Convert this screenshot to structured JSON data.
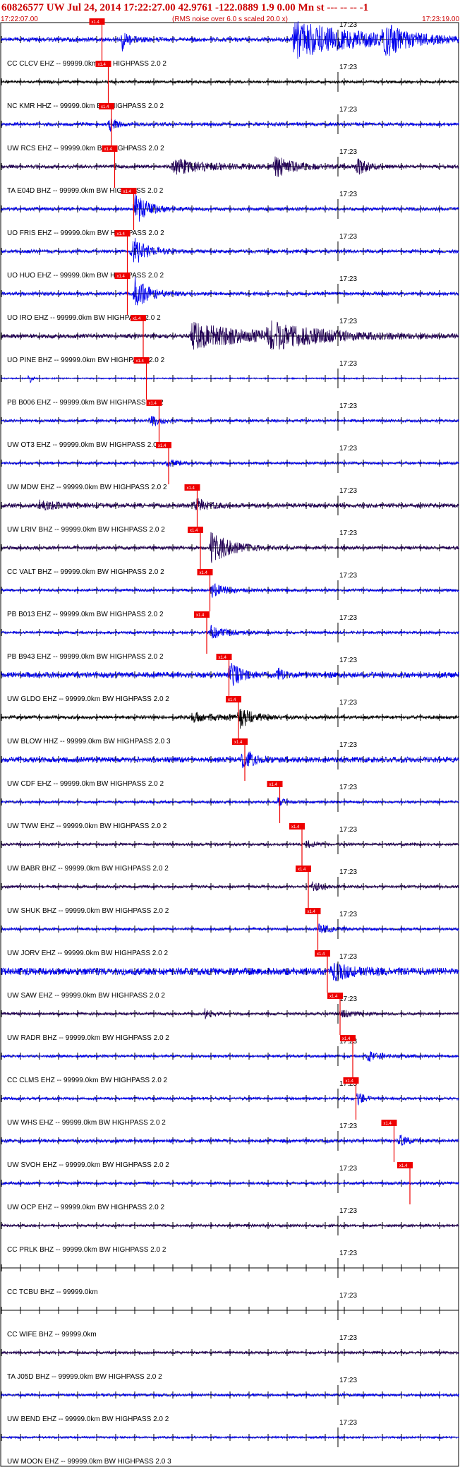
{
  "header": {
    "title": "60826577 UW Jul 24, 2014 17:22:27.00   42.9761 -122.0889  1.9 0.00 Mn st --- -- --  -1",
    "subtitle": "(RMS noise over 6.0 s scaled 20.0 x)",
    "start_time": "17:22:07.00",
    "end_time": "17:23:19.00"
  },
  "colors": {
    "blue": "#0000ee",
    "purple": "#220055",
    "black": "#000000",
    "pick": "#ee0000"
  },
  "chart_data": {
    "type": "line",
    "title": "60826577 UW Jul 24, 2014 17:22:27.00   42.9761 -122.0889  1.9 0.00 Mn st --- -- --  -1",
    "xlabel": "",
    "ylabel": "",
    "x_start": "17:22:07.00",
    "x_end": "17:23:19.00",
    "xlim_seconds": [
      0,
      72
    ],
    "minute_label": "17:23",
    "minute_label_seconds": 53,
    "pick_label": "x1.4",
    "grid": false,
    "series": [
      {
        "name": "CC CLCV EHZ -- 99999.0km BW  HIGHPASS  2.0  2",
        "color": "blue",
        "amp": 3,
        "pick_s": 14.5,
        "bursts": [
          {
            "s": 19,
            "w": 1.2,
            "a": 14
          },
          {
            "s": 46,
            "w": 10,
            "a": 26
          },
          {
            "s": 60,
            "w": 3,
            "a": 22
          }
        ]
      },
      {
        "name": "NC KMR HHZ -- 99999.0km BW  HIGHPASS  2.0  2",
        "color": "black",
        "amp": 2,
        "pick_s": 15.5,
        "bursts": []
      },
      {
        "name": "UW RCS EHZ -- 99999.0km BW  HIGHPASS  2.0  2",
        "color": "blue",
        "amp": 2.5,
        "pick_s": 16,
        "bursts": [
          {
            "s": 17,
            "w": 1,
            "a": 9
          }
        ]
      },
      {
        "name": "TA E04D BHZ -- 99999.0km BW  HIGHPASS  2.0  2",
        "color": "purple",
        "amp": 2.5,
        "pick_s": 16.5,
        "bursts": [
          {
            "s": 27,
            "w": 6,
            "a": 10
          },
          {
            "s": 43,
            "w": 3,
            "a": 14
          },
          {
            "s": 56,
            "w": 1.5,
            "a": 13
          }
        ]
      },
      {
        "name": "UO FRIS EHZ -- 99999.0km BW  HIGHPASS  2.0  2",
        "color": "blue",
        "amp": 2.5,
        "pick_s": 19.5,
        "bursts": [
          {
            "s": 21,
            "w": 2,
            "a": 22
          }
        ]
      },
      {
        "name": "UO HUO EHZ -- 99999.0km BW  HIGHPASS  2.0  2",
        "color": "blue",
        "amp": 2.5,
        "pick_s": 18.5,
        "bursts": [
          {
            "s": 20.5,
            "w": 2.2,
            "a": 22
          }
        ]
      },
      {
        "name": "UO IRO EHZ -- 99999.0km BW  HIGHPASS  2.0  2",
        "color": "blue",
        "amp": 2.5,
        "pick_s": 18.5,
        "bursts": [
          {
            "s": 21,
            "w": 2.2,
            "a": 22
          }
        ]
      },
      {
        "name": "UO PINE BHZ -- 99999.0km BW  HIGHPASS  2.0  2",
        "color": "purple",
        "amp": 3,
        "pick_s": 21,
        "bursts": [
          {
            "s": 30,
            "w": 9,
            "a": 18
          },
          {
            "s": 42,
            "w": 8,
            "a": 16
          }
        ]
      },
      {
        "name": "PB B006 EHZ -- 99999.0km BW  HIGHPASS  2.0  2",
        "color": "blue",
        "amp": 1,
        "pick_s": 21.5,
        "bursts": [
          {
            "s": 4.5,
            "w": 0.3,
            "a": 10
          }
        ]
      },
      {
        "name": "UW OT3 EHZ -- 99999.0km BW  HIGHPASS  2.0  2",
        "color": "blue",
        "amp": 2,
        "pick_s": 23.5,
        "bursts": [
          {
            "s": 23.5,
            "w": 1.5,
            "a": 8
          }
        ]
      },
      {
        "name": "UW MDW EHZ -- 99999.0km BW  HIGHPASS  2.0  2",
        "color": "blue",
        "amp": 2,
        "pick_s": 25,
        "bursts": [
          {
            "s": 26,
            "w": 1.5,
            "a": 6
          }
        ]
      },
      {
        "name": "UW LRIV BHZ -- 99999.0km BW  HIGHPASS  2.0  2",
        "color": "purple",
        "amp": 3,
        "pick_s": 29.5,
        "bursts": [
          {
            "s": 6,
            "w": 3,
            "a": 6
          },
          {
            "s": 30.5,
            "w": 2,
            "a": 10
          }
        ]
      },
      {
        "name": "CC VALT BHZ -- 99999.0km BW  HIGHPASS  2.0  2",
        "color": "purple",
        "amp": 2.5,
        "pick_s": 30,
        "bursts": [
          {
            "s": 33,
            "w": 3,
            "a": 22
          }
        ]
      },
      {
        "name": "PB B013 EHZ -- 99999.0km BW  HIGHPASS  2.0  2",
        "color": "blue",
        "amp": 2,
        "pick_s": 31.5,
        "bursts": [
          {
            "s": 33,
            "w": 2.5,
            "a": 10
          }
        ]
      },
      {
        "name": "PB B943 EHZ -- 99999.0km BW  HIGHPASS  2.0  2",
        "color": "blue",
        "amp": 2,
        "pick_s": 31,
        "bursts": [
          {
            "s": 33,
            "w": 2.5,
            "a": 9
          }
        ]
      },
      {
        "name": "UW GLDO EHZ -- 99999.0km BW  HIGHPASS  2.0  2",
        "color": "blue",
        "amp": 4,
        "pick_s": 34.5,
        "bursts": [
          {
            "s": 36,
            "w": 1.5,
            "a": 20
          },
          {
            "s": 43.5,
            "w": 0.5,
            "a": 14
          }
        ]
      },
      {
        "name": "UW BLOW HHZ -- 99999.0km BW  HIGHPASS  2.0  3",
        "color": "black",
        "amp": 2.5,
        "pick_s": 36,
        "bursts": [
          {
            "s": 37.5,
            "w": 2,
            "a": 14
          },
          {
            "s": 30,
            "w": 4,
            "a": 6
          }
        ]
      },
      {
        "name": "UW CDF EHZ -- 99999.0km BW  HIGHPASS  2.0  2",
        "color": "blue",
        "amp": 4,
        "pick_s": 37,
        "bursts": [
          {
            "s": 38,
            "w": 1.5,
            "a": 16
          }
        ]
      },
      {
        "name": "UW TWW EHZ -- 99999.0km BW  HIGHPASS  2.0  2",
        "color": "blue",
        "amp": 2,
        "pick_s": 42.5,
        "bursts": [
          {
            "s": 43.5,
            "w": 1,
            "a": 6
          }
        ]
      },
      {
        "name": "UW BABR BHZ -- 99999.0km BW  HIGHPASS  2.0  2",
        "color": "purple",
        "amp": 2,
        "pick_s": 46,
        "bursts": [
          {
            "s": 48,
            "w": 1.5,
            "a": 5
          }
        ]
      },
      {
        "name": "UW SHUK BHZ -- 99999.0km BW  HIGHPASS  2.0  2",
        "color": "purple",
        "amp": 2,
        "pick_s": 47,
        "bursts": [
          {
            "s": 49,
            "w": 1.5,
            "a": 6
          }
        ]
      },
      {
        "name": "UW JORV EHZ -- 99999.0km BW  HIGHPASS  2.0  2",
        "color": "blue",
        "amp": 2,
        "pick_s": 48.5,
        "bursts": [
          {
            "s": 50,
            "w": 2,
            "a": 6
          }
        ]
      },
      {
        "name": "UW SAW EHZ -- 99999.0km BW  HIGHPASS  2.0  2",
        "color": "blue",
        "amp": 5,
        "pick_s": 50,
        "bursts": [
          {
            "s": 52,
            "w": 3,
            "a": 12
          }
        ]
      },
      {
        "name": "UW RADR BHZ -- 99999.0km BW  HIGHPASS  2.0  2",
        "color": "purple",
        "amp": 2,
        "pick_s": 52,
        "bursts": [
          {
            "s": 32,
            "w": 1,
            "a": 7
          },
          {
            "s": 53.5,
            "w": 2,
            "a": 5
          }
        ]
      },
      {
        "name": "CC CLMS EHZ -- 99999.0km BW  HIGHPASS  2.0  2",
        "color": "blue",
        "amp": 2,
        "pick_s": 54,
        "bursts": [
          {
            "s": 57.5,
            "w": 2,
            "a": 8
          }
        ]
      },
      {
        "name": "UW WHS EHZ -- 99999.0km BW  HIGHPASS  2.0  2",
        "color": "blue",
        "amp": 2,
        "pick_s": 54.5,
        "bursts": [
          {
            "s": 56,
            "w": 1.2,
            "a": 9
          }
        ]
      },
      {
        "name": "UW SVOH EHZ -- 99999.0km BW  HIGHPASS  2.0  2",
        "color": "blue",
        "amp": 2.5,
        "pick_s": 60.5,
        "bursts": [
          {
            "s": 62.5,
            "w": 1.2,
            "a": 9
          }
        ]
      },
      {
        "name": "UW OCP EHZ -- 99999.0km BW  HIGHPASS  2.0  2",
        "color": "blue",
        "amp": 2,
        "pick_s": 63,
        "bursts": []
      },
      {
        "name": "CC PRLK BHZ -- 99999.0km BW  HIGHPASS  2.0  2",
        "color": "purple",
        "amp": 2,
        "pick_s": null,
        "bursts": []
      },
      {
        "name": "CC TCBU BHZ -- 99999.0km",
        "color": "blue",
        "amp": 0,
        "pick_s": null,
        "bursts": []
      },
      {
        "name": "CC WIFE BHZ -- 99999.0km",
        "color": "blue",
        "amp": 0,
        "pick_s": null,
        "bursts": []
      },
      {
        "name": "TA J05D BHZ -- 99999.0km BW  HIGHPASS  2.0  2",
        "color": "purple",
        "amp": 2,
        "pick_s": null,
        "bursts": []
      },
      {
        "name": "UW BEND EHZ -- 99999.0km BW  HIGHPASS  2.0  2",
        "color": "blue",
        "amp": 2,
        "pick_s": null,
        "bursts": []
      },
      {
        "name": "UW MOON EHZ -- 99999.0km BW  HIGHPASS  2.0  3",
        "color": "blue",
        "amp": 1.5,
        "pick_s": null,
        "bursts": []
      }
    ]
  }
}
